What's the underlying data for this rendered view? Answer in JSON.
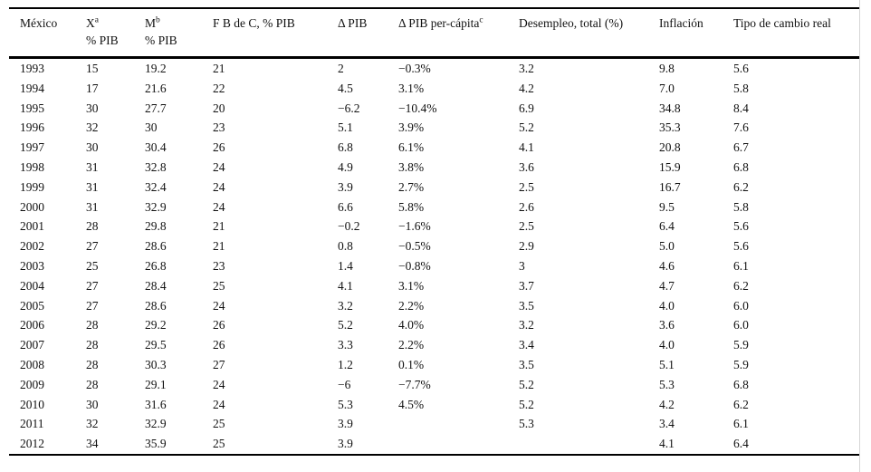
{
  "table": {
    "title": "México",
    "columns": [
      {
        "label": "México",
        "sup": "",
        "sub": ""
      },
      {
        "label": "X",
        "sup": "a",
        "sub": "% PIB"
      },
      {
        "label": "M",
        "sup": "b",
        "sub": "% PIB"
      },
      {
        "label": "F B de C, % PIB",
        "sup": "",
        "sub": ""
      },
      {
        "label": "Δ PIB",
        "sup": "",
        "sub": ""
      },
      {
        "label": "Δ PIB per-cápita",
        "sup": "c",
        "sub": ""
      },
      {
        "label": "Desempleo, total (%)",
        "sup": "",
        "sub": ""
      },
      {
        "label": "Inflación",
        "sup": "",
        "sub": ""
      },
      {
        "label": "Tipo de cambio real",
        "sup": "",
        "sub": ""
      }
    ],
    "rows": [
      [
        "1993",
        "15",
        "19.2",
        "21",
        "2",
        "−0.3%",
        "3.2",
        "9.8",
        "5.6"
      ],
      [
        "1994",
        "17",
        "21.6",
        "22",
        "4.5",
        "3.1%",
        "4.2",
        "7.0",
        "5.8"
      ],
      [
        "1995",
        "30",
        "27.7",
        "20",
        "−6.2",
        "−10.4%",
        "6.9",
        "34.8",
        "8.4"
      ],
      [
        "1996",
        "32",
        "30",
        "23",
        "5.1",
        "3.9%",
        "5.2",
        "35.3",
        "7.6"
      ],
      [
        "1997",
        "30",
        "30.4",
        "26",
        "6.8",
        "6.1%",
        "4.1",
        "20.8",
        "6.7"
      ],
      [
        "1998",
        "31",
        "32.8",
        "24",
        "4.9",
        "3.8%",
        "3.6",
        "15.9",
        "6.8"
      ],
      [
        "1999",
        "31",
        "32.4",
        "24",
        "3.9",
        "2.7%",
        "2.5",
        "16.7",
        "6.2"
      ],
      [
        "2000",
        "31",
        "32.9",
        "24",
        "6.6",
        "5.8%",
        "2.6",
        "9.5",
        "5.8"
      ],
      [
        "2001",
        "28",
        "29.8",
        "21",
        "−0.2",
        "−1.6%",
        "2.5",
        "6.4",
        "5.6"
      ],
      [
        "2002",
        "27",
        "28.6",
        "21",
        "0.8",
        "−0.5%",
        "2.9",
        "5.0",
        "5.6"
      ],
      [
        "2003",
        "25",
        "26.8",
        "23",
        "1.4",
        "−0.8%",
        "3",
        "4.6",
        "6.1"
      ],
      [
        "2004",
        "27",
        "28.4",
        "25",
        "4.1",
        "3.1%",
        "3.7",
        "4.7",
        "6.2"
      ],
      [
        "2005",
        "27",
        "28.6",
        "24",
        "3.2",
        "2.2%",
        "3.5",
        "4.0",
        "6.0"
      ],
      [
        "2006",
        "28",
        "29.2",
        "26",
        "5.2",
        "4.0%",
        "3.2",
        "3.6",
        "6.0"
      ],
      [
        "2007",
        "28",
        "29.5",
        "26",
        "3.3",
        "2.2%",
        "3.4",
        "4.0",
        "5.9"
      ],
      [
        "2008",
        "28",
        "30.3",
        "27",
        "1.2",
        "0.1%",
        "3.5",
        "5.1",
        "5.9"
      ],
      [
        "2009",
        "28",
        "29.1",
        "24",
        "−6",
        "−7.7%",
        "5.2",
        "5.3",
        "6.8"
      ],
      [
        "2010",
        "30",
        "31.6",
        "24",
        "5.3",
        "4.5%",
        "5.2",
        "4.2",
        "6.2"
      ],
      [
        "2011",
        "32",
        "32.9",
        "25",
        "3.9",
        "",
        "5.3",
        "3.4",
        "6.1"
      ],
      [
        "2012",
        "34",
        "35.9",
        "25",
        "3.9",
        "",
        "",
        "4.1",
        "6.4"
      ]
    ]
  }
}
